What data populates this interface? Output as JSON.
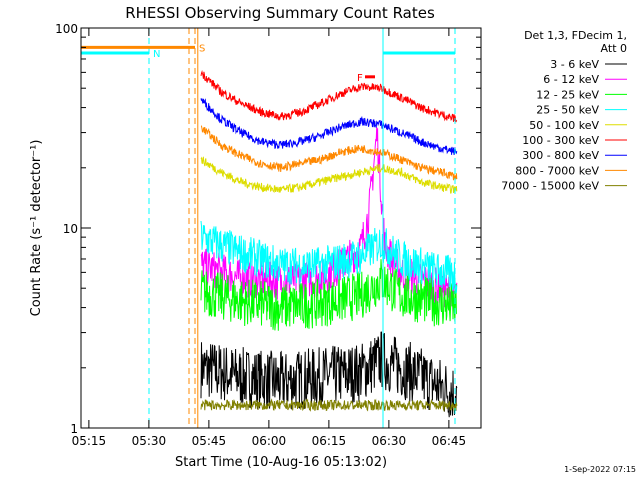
{
  "chart_data": {
    "type": "line",
    "title": "RHESSI Observing Summary Count Rates",
    "xlabel": "Start Time (10-Aug-16 05:13:02)",
    "ylabel": "Count Rate (s⁻¹ detector⁻¹)",
    "x_range_minutes": [
      0,
      100
    ],
    "y_scale": "log",
    "ylim": [
      1,
      100
    ],
    "x_tick_labels": [
      "05:15",
      "05:30",
      "05:45",
      "06:00",
      "06:15",
      "06:30",
      "06:45"
    ],
    "x_tick_minutes": [
      1.97,
      16.97,
      31.97,
      46.97,
      61.97,
      76.97,
      91.97
    ],
    "y_tick_labels": [
      "1",
      "10",
      "100"
    ],
    "y_tick_values": [
      1,
      10,
      100
    ],
    "legend_header": [
      "Det 1,3, FDecim 1,",
      "Att 0"
    ],
    "legend_position": "right",
    "series": [
      {
        "name": "3 - 6 keV",
        "color": "#000000",
        "x": [
          30,
          40,
          50,
          60,
          70,
          75,
          80,
          85,
          90,
          94
        ],
        "values": [
          2.0,
          1.8,
          1.7,
          1.8,
          1.9,
          2.2,
          2.0,
          1.8,
          1.6,
          1.5
        ]
      },
      {
        "name": "6 - 12 keV",
        "color": "#ff00ff",
        "x": [
          30,
          40,
          50,
          60,
          65,
          70,
          72,
          74,
          76,
          80,
          85,
          90,
          94
        ],
        "values": [
          6.5,
          5.6,
          5.4,
          5.6,
          6.5,
          8.0,
          12,
          30,
          8.0,
          6.0,
          5.5,
          5.0,
          4.6
        ]
      },
      {
        "name": "12 - 25 keV",
        "color": "#00ff00",
        "x": [
          30,
          40,
          50,
          60,
          70,
          75,
          80,
          85,
          90,
          94
        ],
        "values": [
          4.8,
          4.3,
          4.0,
          4.2,
          4.6,
          5.5,
          4.6,
          4.4,
          4.2,
          4.0
        ]
      },
      {
        "name": "25 - 50 keV",
        "color": "#00ffff",
        "x": [
          30,
          40,
          50,
          60,
          70,
          75,
          80,
          85,
          90,
          94
        ],
        "values": [
          9.0,
          7.5,
          6.5,
          6.5,
          7.2,
          8.5,
          7.0,
          6.5,
          6.0,
          5.8
        ]
      },
      {
        "name": "50 - 100 keV",
        "color": "#dddd00",
        "x": [
          30,
          35,
          40,
          45,
          50,
          55,
          60,
          65,
          70,
          75,
          80,
          85,
          90,
          94
        ],
        "values": [
          22,
          19,
          17,
          16,
          15.5,
          16,
          17,
          18,
          19,
          20,
          19,
          17,
          16,
          15.5
        ]
      },
      {
        "name": "100 - 300 keV",
        "color": "#ff0000",
        "x": [
          30,
          35,
          40,
          45,
          50,
          55,
          60,
          65,
          70,
          75,
          80,
          85,
          90,
          94
        ],
        "values": [
          60,
          48,
          42,
          38,
          36,
          38,
          42,
          47,
          51,
          50,
          45,
          40,
          37,
          35
        ]
      },
      {
        "name": "300 - 800 keV",
        "color": "#0000ff",
        "x": [
          30,
          35,
          40,
          45,
          50,
          55,
          60,
          65,
          70,
          75,
          80,
          85,
          90,
          94
        ],
        "values": [
          44,
          35,
          30,
          27,
          26,
          27,
          29,
          32,
          34,
          33,
          30,
          27,
          25,
          24
        ]
      },
      {
        "name": "800 - 7000 keV",
        "color": "#ff8800",
        "x": [
          30,
          35,
          40,
          45,
          50,
          55,
          60,
          65,
          70,
          75,
          80,
          85,
          90,
          94
        ],
        "values": [
          32,
          26,
          23,
          21,
          20,
          21,
          22,
          24,
          25,
          24,
          22,
          20,
          19,
          18
        ]
      },
      {
        "name": "7000 - 15000 keV",
        "color": "#808000",
        "x": [
          30,
          40,
          50,
          60,
          70,
          80,
          90,
          94
        ],
        "values": [
          1.3,
          1.3,
          1.3,
          1.3,
          1.3,
          1.3,
          1.3,
          1.3
        ]
      }
    ],
    "flags": [
      {
        "label": "S",
        "color": "#ff8800",
        "x_start": 0,
        "x_end": 28.5,
        "level": 80
      },
      {
        "label": "N",
        "color": "#00ffff",
        "x_start": 0,
        "x_end": 17,
        "level": 75
      },
      {
        "label": "",
        "color": "#00ffff",
        "x_start": 75.5,
        "x_end": 93.5,
        "level": 75
      },
      {
        "label": "F",
        "color": "#ff0000",
        "x_start": 71,
        "x_end": 73.5,
        "level": 57
      }
    ],
    "vlines": [
      {
        "x": 17,
        "color": "#00ffff",
        "style": "dashed"
      },
      {
        "x": 27,
        "color": "#ff8800",
        "style": "dashed"
      },
      {
        "x": 28.5,
        "color": "#ff8800",
        "style": "dashed"
      },
      {
        "x": 29.2,
        "color": "#ff8800",
        "style": "solid"
      },
      {
        "x": 75.5,
        "color": "#00ffff",
        "style": "solid"
      },
      {
        "x": 93.5,
        "color": "#00ffff",
        "style": "dashed"
      }
    ]
  },
  "footer_timestamp": "1-Sep-2022 07:15"
}
